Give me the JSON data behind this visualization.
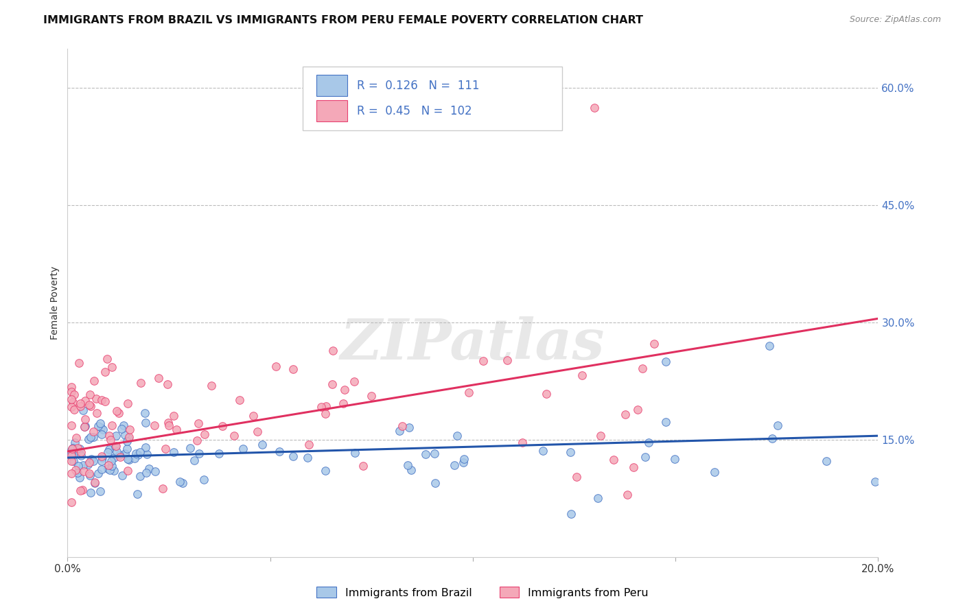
{
  "title": "IMMIGRANTS FROM BRAZIL VS IMMIGRANTS FROM PERU FEMALE POVERTY CORRELATION CHART",
  "source": "Source: ZipAtlas.com",
  "ylabel": "Female Poverty",
  "xlim": [
    0.0,
    0.2
  ],
  "ylim": [
    0.0,
    0.65
  ],
  "brazil_R": 0.126,
  "brazil_N": 111,
  "peru_R": 0.45,
  "peru_N": 102,
  "brazil_color": "#a8c8e8",
  "peru_color": "#f4a8b8",
  "brazil_edge_color": "#4472c4",
  "peru_edge_color": "#e84070",
  "brazil_line_color": "#2255aa",
  "peru_line_color": "#e03060",
  "watermark": "ZIPatlas",
  "title_fontsize": 11.5,
  "label_fontsize": 10,
  "tick_fontsize": 11,
  "legend_label_brazil": "Immigrants from Brazil",
  "legend_label_peru": "Immigrants from Peru",
  "brazil_trend_x0": 0.0,
  "brazil_trend_x1": 0.2,
  "brazil_trend_y0": 0.127,
  "brazil_trend_y1": 0.155,
  "peru_trend_x0": 0.0,
  "peru_trend_x1": 0.2,
  "peru_trend_y0": 0.135,
  "peru_trend_y1": 0.305,
  "ytick_color": "#4472c4",
  "legend_text_color": "#4472c4",
  "legend_r_label_color": "#000000"
}
